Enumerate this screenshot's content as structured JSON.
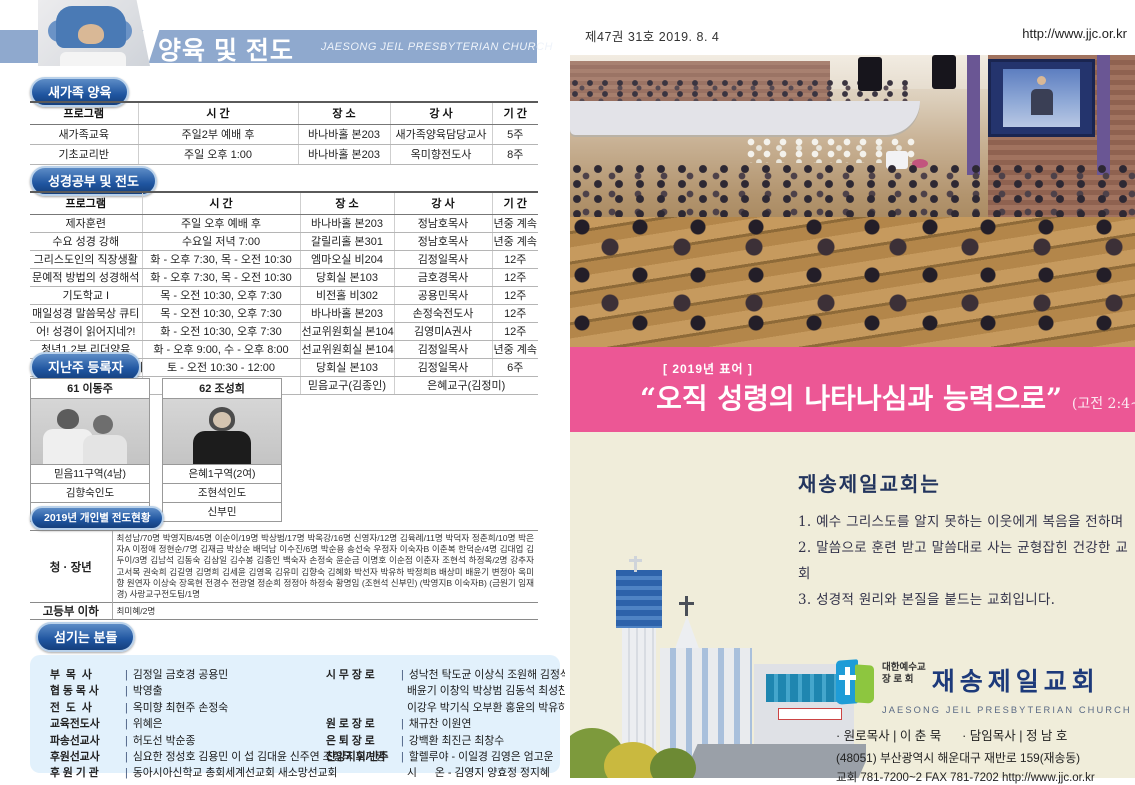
{
  "left_page": {
    "header": {
      "title": "양육 및 전도",
      "subtitle": "JAESONG JEIL PRESBYTERIAN CHURCH"
    },
    "new_family": {
      "section_title": "새가족 양육",
      "headers": [
        "프로그램",
        "시 간",
        "장 소",
        "강 사",
        "기 간"
      ],
      "rows": [
        [
          "새가족교육",
          "주일2부 예배 후",
          "바나바홀 본203",
          "새가족양육담당교사",
          "5주"
        ],
        [
          "기초교리반",
          "주일 오후 1:00",
          "바나바홀 본203",
          "옥미향전도사",
          "8주"
        ]
      ]
    },
    "bible_study": {
      "section_title": "성경공부 및 전도",
      "headers": [
        "프로그램",
        "시 간",
        "장 소",
        "강 사",
        "기 간"
      ],
      "rows": [
        [
          "제자훈련",
          "주일 오후 예배 후",
          "바나바홀 본203",
          "정남호목사",
          "년중 계속"
        ],
        [
          "수요 성경 강해",
          "수요일 저녁 7:00",
          "갈릴리홀 본301",
          "정남호목사",
          "년중 계속"
        ],
        [
          "그리스도인의 직장생활",
          "화 - 오후 7:30, 목 - 오전 10:30",
          "엠마오실 비204",
          "김정일목사",
          "12주"
        ],
        [
          "문예적 방법의 성경해석",
          "화 - 오후 7:30, 목 - 오전 10:30",
          "당회실 본103",
          "금호경목사",
          "12주"
        ],
        [
          "기도학교 I",
          "목 - 오전 10:30, 오후 7:30",
          "비전홀 비302",
          "공용민목사",
          "12주"
        ],
        [
          "매일성경 말씀묵상 큐티",
          "목 - 오전 10:30, 오후 7:30",
          "바나바홀 본203",
          "손정숙전도사",
          "12주"
        ],
        [
          "어! 성경이 읽어지네?!",
          "화 - 오전 10:30, 오후 7:30",
          "선교위원회실 본104",
          "김영미A권사",
          "12주"
        ],
        [
          "청년1,2부 리더양육",
          "화 - 오후 9:00, 수 - 오후 8:00",
          "선교위원회실 본104",
          "김정일목사",
          "년중 계속"
        ],
        [
          "청년1,2부 바이블 칼리지",
          "토 - 오전 10:30 - 12:00",
          "당회실 본103",
          "김정일목사",
          "6주"
        ]
      ],
      "footer": [
        "교구전도대",
        "사랑교구(현정희)",
        "믿음교구(김종인)",
        "은혜교구(김정미)"
      ]
    },
    "registrants": {
      "section_title": "지난주 등록자",
      "cards": [
        {
          "title": "61 이동주",
          "district": "믿음11구역(4남)",
          "guide": "김향숙인도",
          "presenter": "조훈범"
        },
        {
          "title": "62 조성희",
          "district": "은혜1구역(2여)",
          "guide": "조현석인도",
          "presenter": "신부민"
        }
      ]
    },
    "evangelism": {
      "section_title": "2019년 개인별 전도현황",
      "rows": [
        {
          "label": "청 · 장년",
          "content": "최성남/70명 박영지B/45명 이순이/19명 박상범/17명 박옥강/16명 신영자/12명 김육례/11명 박덕자 정춘희/10명 박은자A 이정애 정현순/7명 김재금 박상순 배덕남 이수진/6명 박순용 송선숙 우정자 이숙자B 이춘복 한덕순/4명 김대업 김두이/3명 김남석 김동숙 김삼일 김수봉 김종인 백숙자 손정숙 윤순금 이명호 이순점 이춘자 조현석 하정옥/2명 강추자 고서목 권숙희 김길영 김명희 김세윤 김영옥 김유미 김향숙 김혜화 박선자 박유하 박정희B 배상미 배윤기 변정아 옥미향 원연자 이상숙 장옥현 전경수 전광열 정순희 정정아 하정숙 황명임 (조현석 신부민) (박영지B 이숙자B) (금원기 임재경) 사랑교구전도팀/1명"
        },
        {
          "label": "고등부 이하",
          "content": "최미혜/2명"
        }
      ]
    },
    "servants": {
      "section_title": "섬기는 분들",
      "left": [
        {
          "role": "부  목  사",
          "lines": [
            "김정일 금호경 공용민"
          ]
        },
        {
          "role": "협 동 목 사",
          "lines": [
            "박영출"
          ]
        },
        {
          "role": "전  도  사",
          "lines": [
            "옥미향 최현주 손정숙"
          ]
        },
        {
          "role": "교육전도사",
          "lines": [
            "위혜은"
          ]
        },
        {
          "role": "파송선교사",
          "lines": [
            "허도선 박순종"
          ]
        },
        {
          "role": "후원선교사",
          "lines": [
            "심요한 정성호 김용민 이 섭 김대윤 신주연 조형국 오기명"
          ]
        },
        {
          "role": "후 원 기 관",
          "lines": [
            "동아시아신학교 총회세계선교회 새소망선교회"
          ]
        }
      ],
      "right": [
        {
          "role": "시 무 장 로",
          "lines": [
            "성낙천 탁도균 이상식 조원해 김정석",
            "배윤기 이창익 박상범 김동석 최성찬",
            "이강우 박기식 오부환 홍윤의 박유하"
          ]
        },
        {
          "role": "원 로 장 로",
          "lines": [
            "채규찬 이원연"
          ]
        },
        {
          "role": "은 퇴 장 로",
          "lines": [
            "강백환 최진근 최창수"
          ]
        },
        {
          "role": "찬양지휘/반주",
          "lines": [
            "할렐루야 - 이일경 김영은 엄고운",
            "시      온 - 김영지 양효정 정지혜"
          ]
        }
      ]
    }
  },
  "right_page": {
    "header": {
      "issue": "제47권 31호  2019. 8. 4",
      "url": "http://www.jjc.or.kr"
    },
    "banner": {
      "tag": "[ 2019년 표어 ]",
      "quote": "“오직 성령의 나타나심과 능력으로”",
      "ref": "(고전 2:4~5)"
    },
    "intro": {
      "title": "재송제일교회는",
      "items": [
        "1. 예수 그리스도를 알지 못하는 이웃에게 복음을 전하며",
        "2. 말씀으로 훈련 받고 말씀대로 사는 균형잡힌 건강한 교회",
        "3. 성경적 원리와 본질을 붙드는 교회입니다."
      ]
    },
    "church_info": {
      "denom": "대한예수교\n장 로 회",
      "name": "재송제일교회",
      "name_en": "JAESONG JEIL PRESBYTERIAN CHURCH",
      "pastors": "· 원로목사 | 이 춘 묵      · 담임목사 | 정 남 호",
      "address": "(48051) 부산광역시 해운대구 재반로 159(재송동)",
      "contact": "교회 781-7200~2  FAX 781-7202  http://www.jjc.or.kr"
    },
    "colors": {
      "banner_pink": "#ec5795",
      "cream": "#f0edda",
      "band_blue": "#8fa9ce",
      "navy": "#1d3a7a"
    }
  }
}
